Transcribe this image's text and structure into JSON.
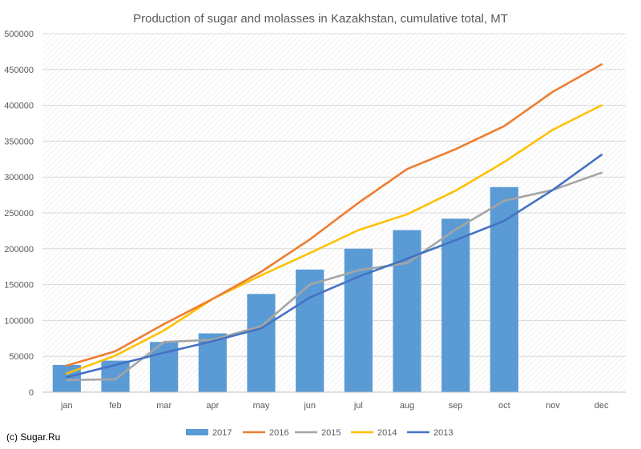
{
  "chart_data": {
    "type": "bar",
    "title": "Production of sugar and molasses in Kazakhstan, cumulative total, MT",
    "categories": [
      "jan",
      "feb",
      "mar",
      "apr",
      "may",
      "jun",
      "jul",
      "aug",
      "sep",
      "oct",
      "nov",
      "dec"
    ],
    "ylim": [
      0,
      500000
    ],
    "yticks": [
      0,
      50000,
      100000,
      150000,
      200000,
      250000,
      300000,
      350000,
      400000,
      450000,
      500000
    ],
    "grid": true,
    "legend_position": "bottom",
    "series": [
      {
        "name": "2017",
        "kind": "bar",
        "color": "#5b9bd5",
        "values": [
          38000,
          44000,
          70000,
          82000,
          137000,
          171000,
          200000,
          226000,
          242000,
          286000,
          null,
          null
        ]
      },
      {
        "name": "2016",
        "kind": "line",
        "color": "#ed7d31",
        "values": [
          37000,
          57000,
          95000,
          130000,
          168000,
          213000,
          264000,
          311000,
          339000,
          371000,
          419000,
          457000
        ]
      },
      {
        "name": "2015",
        "kind": "line",
        "color": "#a5a5a5",
        "values": [
          17000,
          18000,
          70000,
          73000,
          92000,
          150000,
          170000,
          180000,
          227000,
          267000,
          282000,
          306000
        ]
      },
      {
        "name": "2014",
        "kind": "line",
        "color": "#ffc000",
        "values": [
          26000,
          51000,
          86000,
          130000,
          163000,
          194000,
          226000,
          248000,
          281000,
          321000,
          366000,
          400000
        ]
      },
      {
        "name": "2013",
        "kind": "line",
        "color": "#4472c4",
        "values": [
          21000,
          38000,
          55000,
          71000,
          89000,
          132000,
          161000,
          186000,
          212000,
          239000,
          282000,
          331000
        ]
      }
    ]
  },
  "credit": "(c) Sugar.Ru"
}
